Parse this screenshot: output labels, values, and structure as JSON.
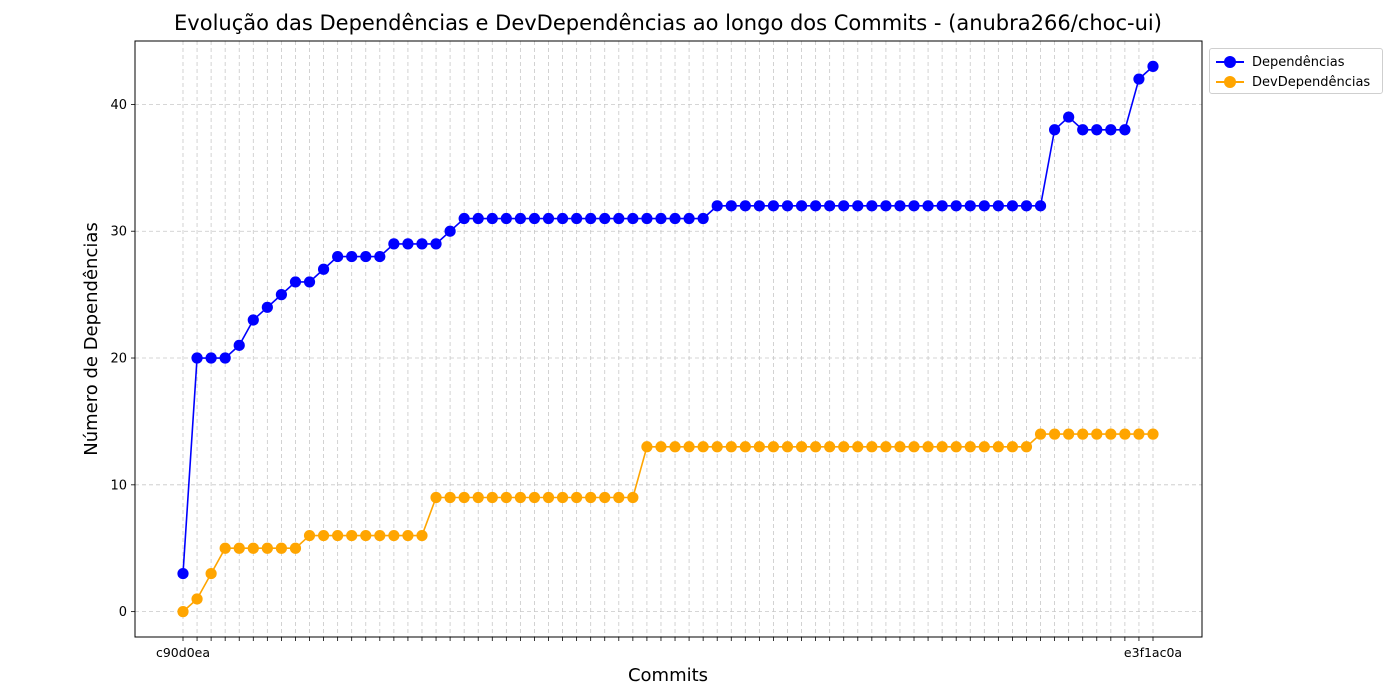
{
  "chart_data": {
    "type": "line",
    "title": "Evolução das Dependências e DevDependências ao longo dos Commits - (anubra266/choc-ui)",
    "xlabel": "Commits",
    "ylabel": "Número de Dependências",
    "ylim": [
      -2,
      45
    ],
    "yticks": [
      0,
      10,
      20,
      30,
      40
    ],
    "grid": true,
    "legend_position": "top-right outside",
    "first_tick_label": "c90d0ea",
    "last_tick_label": "e3f1ac0a",
    "series": [
      {
        "name": "Dependências",
        "color": "#0000ff",
        "values": [
          3,
          20,
          20,
          20,
          21,
          23,
          24,
          25,
          26,
          26,
          27,
          28,
          28,
          28,
          28,
          29,
          29,
          29,
          29,
          30,
          31,
          31,
          31,
          31,
          31,
          31,
          31,
          31,
          31,
          31,
          31,
          31,
          31,
          31,
          31,
          31,
          31,
          31,
          32,
          32,
          32,
          32,
          32,
          32,
          32,
          32,
          32,
          32,
          32,
          32,
          32,
          32,
          32,
          32,
          32,
          32,
          32,
          32,
          32,
          32,
          32,
          32,
          38,
          39,
          38,
          38,
          38,
          38,
          42,
          43
        ]
      },
      {
        "name": "DevDependências",
        "color": "#ffa500",
        "values": [
          0,
          1,
          3,
          5,
          5,
          5,
          5,
          5,
          5,
          6,
          6,
          6,
          6,
          6,
          6,
          6,
          6,
          6,
          9,
          9,
          9,
          9,
          9,
          9,
          9,
          9,
          9,
          9,
          9,
          9,
          9,
          9,
          9,
          13,
          13,
          13,
          13,
          13,
          13,
          13,
          13,
          13,
          13,
          13,
          13,
          13,
          13,
          13,
          13,
          13,
          13,
          13,
          13,
          13,
          13,
          13,
          13,
          13,
          13,
          13,
          13,
          14,
          14,
          14,
          14,
          14,
          14,
          14,
          14,
          14
        ]
      }
    ]
  }
}
